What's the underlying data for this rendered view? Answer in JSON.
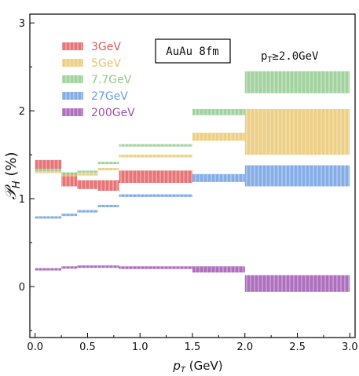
{
  "chart_data": {
    "type": "area",
    "title": "",
    "xlabel": "p_T (GeV)",
    "ylabel": "P_H (%)",
    "xlim": [
      -0.05,
      3.05
    ],
    "ylim": [
      -0.58,
      3.1
    ],
    "x_ticks": [
      0.0,
      0.5,
      1.0,
      1.5,
      2.0,
      2.5,
      3.0
    ],
    "x_tick_labels": [
      "0.0",
      "0.5",
      "1.0",
      "1.5",
      "2.0",
      "2.5",
      "3.0"
    ],
    "y_ticks": [
      0,
      1,
      2,
      3
    ],
    "y_tick_labels": [
      "0",
      "1",
      "2",
      "3"
    ],
    "grid": false,
    "legend_position": "top-left",
    "annotations": [
      {
        "text": "AuAu 8fm",
        "boxed": true
      },
      {
        "text": "p_T ≥ 2.0GeV",
        "boxed": false
      }
    ],
    "series": [
      {
        "name": "3GeV",
        "color": "#e0575a",
        "bands": [
          {
            "x0": 0.0,
            "x1": 0.25,
            "low": 1.34,
            "high": 1.44
          },
          {
            "x0": 0.25,
            "x1": 0.4,
            "low": 1.14,
            "high": 1.29
          },
          {
            "x0": 0.4,
            "x1": 0.6,
            "low": 1.11,
            "high": 1.21
          },
          {
            "x0": 0.6,
            "x1": 0.8,
            "low": 1.09,
            "high": 1.21
          },
          {
            "x0": 0.8,
            "x1": 1.5,
            "low": 1.18,
            "high": 1.32
          }
        ]
      },
      {
        "name": "5GeV",
        "color": "#e9c46a",
        "bands": [
          {
            "x0": 0.0,
            "x1": 0.25,
            "low": 1.3,
            "high": 1.32
          },
          {
            "x0": 0.25,
            "x1": 0.4,
            "low": 1.26,
            "high": 1.28
          },
          {
            "x0": 0.4,
            "x1": 0.6,
            "low": 1.27,
            "high": 1.29
          },
          {
            "x0": 0.6,
            "x1": 0.8,
            "low": 1.33,
            "high": 1.35
          },
          {
            "x0": 0.8,
            "x1": 1.5,
            "low": 1.47,
            "high": 1.5
          },
          {
            "x0": 1.5,
            "x1": 2.0,
            "low": 1.66,
            "high": 1.75
          },
          {
            "x0": 2.0,
            "x1": 3.0,
            "low": 1.5,
            "high": 2.02
          }
        ]
      },
      {
        "name": "7.7GeV",
        "color": "#8ec98a",
        "bands": [
          {
            "x0": 0.0,
            "x1": 0.25,
            "low": 1.32,
            "high": 1.34
          },
          {
            "x0": 0.25,
            "x1": 0.4,
            "low": 1.28,
            "high": 1.3
          },
          {
            "x0": 0.4,
            "x1": 0.6,
            "low": 1.3,
            "high": 1.32
          },
          {
            "x0": 0.6,
            "x1": 0.8,
            "low": 1.4,
            "high": 1.42
          },
          {
            "x0": 0.8,
            "x1": 1.5,
            "low": 1.6,
            "high": 1.62
          },
          {
            "x0": 1.5,
            "x1": 2.0,
            "low": 1.95,
            "high": 2.02
          },
          {
            "x0": 2.0,
            "x1": 3.0,
            "low": 2.2,
            "high": 2.45
          }
        ]
      },
      {
        "name": "27GeV",
        "color": "#6a9be0",
        "bands": [
          {
            "x0": 0.0,
            "x1": 0.25,
            "low": 0.78,
            "high": 0.8
          },
          {
            "x0": 0.25,
            "x1": 0.4,
            "low": 0.81,
            "high": 0.83
          },
          {
            "x0": 0.4,
            "x1": 0.6,
            "low": 0.85,
            "high": 0.87
          },
          {
            "x0": 0.6,
            "x1": 0.8,
            "low": 0.91,
            "high": 0.93
          },
          {
            "x0": 0.8,
            "x1": 1.5,
            "low": 1.02,
            "high": 1.05
          },
          {
            "x0": 1.5,
            "x1": 2.0,
            "low": 1.19,
            "high": 1.28
          },
          {
            "x0": 2.0,
            "x1": 3.0,
            "low": 1.14,
            "high": 1.38
          }
        ]
      },
      {
        "name": "200GeV",
        "color": "#9b4fb0",
        "bands": [
          {
            "x0": 0.0,
            "x1": 0.25,
            "low": 0.19,
            "high": 0.21
          },
          {
            "x0": 0.25,
            "x1": 0.4,
            "low": 0.21,
            "high": 0.23
          },
          {
            "x0": 0.4,
            "x1": 0.6,
            "low": 0.22,
            "high": 0.24
          },
          {
            "x0": 0.6,
            "x1": 0.8,
            "low": 0.22,
            "high": 0.24
          },
          {
            "x0": 0.8,
            "x1": 1.5,
            "low": 0.2,
            "high": 0.23
          },
          {
            "x0": 1.5,
            "x1": 2.0,
            "low": 0.16,
            "high": 0.23
          },
          {
            "x0": 2.0,
            "x1": 3.0,
            "low": -0.06,
            "high": 0.13
          }
        ]
      }
    ]
  }
}
